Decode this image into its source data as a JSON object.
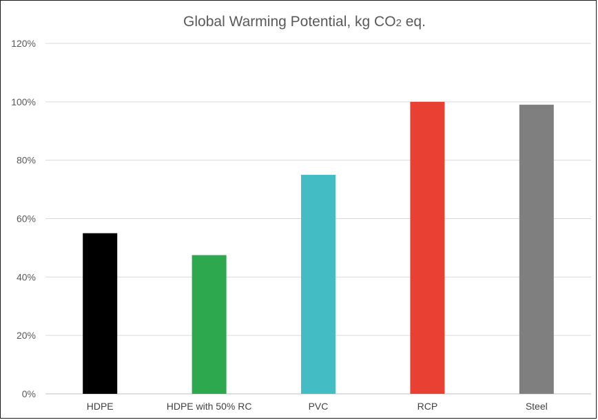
{
  "chart_data": {
    "type": "bar",
    "title": "Global Warming Potential, kg CO2 eq.",
    "title_parts": {
      "before": "Global Warming Potential, kg CO",
      "subscript": "2",
      "after": " eq."
    },
    "categories": [
      "HDPE",
      "HDPE with 50% RC",
      "PVC",
      "RCP",
      "Steel"
    ],
    "values": [
      0.55,
      0.475,
      0.75,
      1.0,
      0.99
    ],
    "colors": [
      "#000000",
      "#2ea84f",
      "#44bcc4",
      "#e84133",
      "#7f7f7f"
    ],
    "ylim": [
      0,
      1.2
    ],
    "yticks": [
      "0%",
      "20%",
      "40%",
      "60%",
      "80%",
      "100%",
      "120%"
    ],
    "ytick_values": [
      0,
      0.2,
      0.4,
      0.6,
      0.8,
      1.0,
      1.2
    ],
    "grid": true,
    "legend": "none",
    "xlabel": "",
    "ylabel": ""
  }
}
